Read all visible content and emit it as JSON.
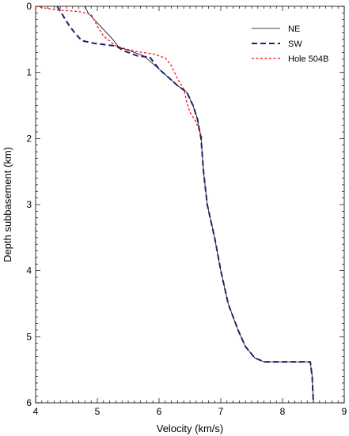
{
  "chart_data": {
    "type": "line",
    "title": "",
    "xlabel": "Velocity (km/s)",
    "ylabel": "Depth subbasement (km)",
    "xlim": [
      4,
      9
    ],
    "ylim": [
      6,
      0
    ],
    "y_inverted": true,
    "x_ticks": [
      4,
      5,
      6,
      7,
      8,
      9
    ],
    "y_ticks": [
      0,
      1,
      2,
      3,
      4,
      5,
      6
    ],
    "minor_tick_step_x": 0.1,
    "minor_tick_step_y": 0.1,
    "grid": false,
    "legend_position": "top-right",
    "series": [
      {
        "name": "NE",
        "color": "#000000",
        "style": "solid",
        "points": [
          [
            4.8,
            0.0
          ],
          [
            4.85,
            0.1
          ],
          [
            4.95,
            0.2
          ],
          [
            5.1,
            0.35
          ],
          [
            5.25,
            0.5
          ],
          [
            5.35,
            0.62
          ],
          [
            5.55,
            0.68
          ],
          [
            5.75,
            0.75
          ],
          [
            6.0,
            0.95
          ],
          [
            6.3,
            1.2
          ],
          [
            6.45,
            1.3
          ],
          [
            6.55,
            1.5
          ],
          [
            6.62,
            1.7
          ],
          [
            6.68,
            2.0
          ],
          [
            6.72,
            2.5
          ],
          [
            6.78,
            3.0
          ],
          [
            6.9,
            3.5
          ],
          [
            7.0,
            4.0
          ],
          [
            7.12,
            4.5
          ],
          [
            7.28,
            4.9
          ],
          [
            7.4,
            5.15
          ],
          [
            7.55,
            5.32
          ],
          [
            7.7,
            5.38
          ],
          [
            8.0,
            5.38
          ],
          [
            8.2,
            5.38
          ],
          [
            8.45,
            5.38
          ],
          [
            8.48,
            5.6
          ],
          [
            8.5,
            6.0
          ]
        ]
      },
      {
        "name": "SW",
        "color": "#1f1f6e",
        "style": "dashed",
        "points": [
          [
            4.35,
            0.0
          ],
          [
            4.45,
            0.15
          ],
          [
            4.55,
            0.3
          ],
          [
            4.65,
            0.42
          ],
          [
            4.75,
            0.52
          ],
          [
            4.95,
            0.56
          ],
          [
            5.3,
            0.6
          ],
          [
            5.45,
            0.68
          ],
          [
            5.65,
            0.75
          ],
          [
            5.85,
            0.77
          ],
          [
            6.0,
            0.95
          ],
          [
            6.3,
            1.2
          ],
          [
            6.45,
            1.3
          ],
          [
            6.55,
            1.5
          ],
          [
            6.62,
            1.7
          ],
          [
            6.68,
            2.0
          ],
          [
            6.72,
            2.5
          ],
          [
            6.78,
            3.0
          ],
          [
            6.9,
            3.5
          ],
          [
            7.0,
            4.0
          ],
          [
            7.12,
            4.5
          ],
          [
            7.28,
            4.9
          ],
          [
            7.4,
            5.15
          ],
          [
            7.55,
            5.32
          ],
          [
            7.7,
            5.38
          ],
          [
            8.0,
            5.38
          ],
          [
            8.2,
            5.38
          ],
          [
            8.45,
            5.38
          ],
          [
            8.48,
            5.6
          ],
          [
            8.5,
            6.0
          ]
        ]
      },
      {
        "name": "Hole 504B",
        "color": "#ff0000",
        "style": "dotted",
        "points": [
          [
            4.0,
            0.0
          ],
          [
            4.3,
            0.05
          ],
          [
            4.7,
            0.08
          ],
          [
            4.9,
            0.12
          ],
          [
            5.0,
            0.3
          ],
          [
            5.1,
            0.45
          ],
          [
            5.3,
            0.6
          ],
          [
            5.6,
            0.68
          ],
          [
            5.9,
            0.72
          ],
          [
            6.1,
            0.78
          ],
          [
            6.2,
            0.9
          ],
          [
            6.3,
            1.1
          ],
          [
            6.4,
            1.25
          ],
          [
            6.45,
            1.45
          ],
          [
            6.5,
            1.6
          ],
          [
            6.6,
            1.75
          ],
          [
            6.7,
            2.0
          ]
        ]
      }
    ]
  }
}
